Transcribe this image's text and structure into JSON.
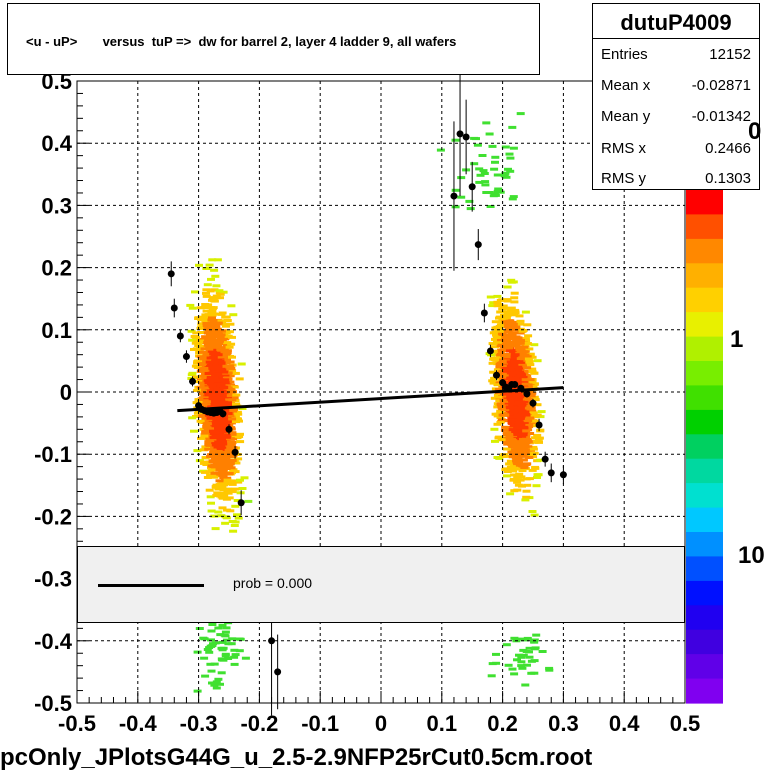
{
  "title": "<u - uP>       versus  tuP =>  dw for barrel 2, layer 4 ladder 9, all wafers",
  "bottom_title": "pcOnly_JPlotsG44G_u_2.5-2.9NFP25rCut0.5cm.root",
  "stats": {
    "name": "dutuP4009",
    "rows": [
      {
        "label": "Entries",
        "value": "12152"
      },
      {
        "label": "Mean x",
        "value": "-0.02871"
      },
      {
        "label": "Mean y",
        "value": "-0.01342"
      },
      {
        "label": "RMS x",
        "value": "0.2466"
      },
      {
        "label": "RMS y",
        "value": "0.1303"
      }
    ]
  },
  "legend": {
    "text": "prob = 0.000"
  },
  "colorbar": {
    "labels": [
      "0",
      "1",
      "10"
    ]
  },
  "chart_data": {
    "type": "scatter",
    "xlim": [
      -0.5,
      0.5
    ],
    "ylim": [
      -0.5,
      0.5
    ],
    "x_ticks": [
      "-0.5",
      "-0.4",
      "-0.3",
      "-0.2",
      "-0.1",
      "0",
      "0.1",
      "0.2",
      "0.3",
      "0.4",
      "0.5"
    ],
    "y_ticks": [
      "-0.5",
      "-0.4",
      "-0.3",
      "-0.2",
      "-0.1",
      "0",
      "0.1",
      "0.2",
      "0.3",
      "0.4",
      "0.5"
    ],
    "grid": true,
    "profile_points": [
      {
        "x": -0.345,
        "y": 0.19,
        "err": 0.02
      },
      {
        "x": -0.34,
        "y": 0.135,
        "err": 0.015
      },
      {
        "x": -0.33,
        "y": 0.09,
        "err": 0.01
      },
      {
        "x": -0.32,
        "y": 0.057,
        "err": 0.01
      },
      {
        "x": -0.31,
        "y": 0.017,
        "err": 0.008
      },
      {
        "x": -0.3,
        "y": -0.022,
        "err": 0.006
      },
      {
        "x": -0.295,
        "y": -0.028,
        "err": 0.005
      },
      {
        "x": -0.29,
        "y": -0.03,
        "err": 0.005
      },
      {
        "x": -0.285,
        "y": -0.032,
        "err": 0.005
      },
      {
        "x": -0.28,
        "y": -0.033,
        "err": 0.005
      },
      {
        "x": -0.275,
        "y": -0.034,
        "err": 0.005
      },
      {
        "x": -0.27,
        "y": -0.033,
        "err": 0.005
      },
      {
        "x": -0.265,
        "y": -0.031,
        "err": 0.005
      },
      {
        "x": -0.26,
        "y": -0.035,
        "err": 0.006
      },
      {
        "x": -0.25,
        "y": -0.06,
        "err": 0.008
      },
      {
        "x": -0.24,
        "y": -0.097,
        "err": 0.01
      },
      {
        "x": -0.23,
        "y": -0.178,
        "err": 0.02
      },
      {
        "x": -0.18,
        "y": -0.4,
        "err": 0.12
      },
      {
        "x": -0.17,
        "y": -0.45,
        "err": 0.06
      },
      {
        "x": 0.12,
        "y": 0.315,
        "err": 0.12
      },
      {
        "x": 0.13,
        "y": 0.415,
        "err": 0.1
      },
      {
        "x": 0.14,
        "y": 0.41,
        "err": 0.06
      },
      {
        "x": 0.15,
        "y": 0.33,
        "err": 0.04
      },
      {
        "x": 0.16,
        "y": 0.237,
        "err": 0.025
      },
      {
        "x": 0.17,
        "y": 0.127,
        "err": 0.015
      },
      {
        "x": 0.18,
        "y": 0.066,
        "err": 0.01
      },
      {
        "x": 0.19,
        "y": 0.027,
        "err": 0.008
      },
      {
        "x": 0.2,
        "y": 0.015,
        "err": 0.006
      },
      {
        "x": 0.205,
        "y": 0.008,
        "err": 0.005
      },
      {
        "x": 0.21,
        "y": 0.005,
        "err": 0.005
      },
      {
        "x": 0.215,
        "y": 0.012,
        "err": 0.005
      },
      {
        "x": 0.22,
        "y": 0.012,
        "err": 0.005
      },
      {
        "x": 0.23,
        "y": 0.006,
        "err": 0.005
      },
      {
        "x": 0.24,
        "y": -0.003,
        "err": 0.006
      },
      {
        "x": 0.25,
        "y": -0.018,
        "err": 0.007
      },
      {
        "x": 0.26,
        "y": -0.053,
        "err": 0.01
      },
      {
        "x": 0.27,
        "y": -0.108,
        "err": 0.012
      },
      {
        "x": 0.28,
        "y": -0.13,
        "err": 0.015
      },
      {
        "x": 0.3,
        "y": -0.133,
        "err": 0.015
      }
    ],
    "fit_line": {
      "x": [
        -0.335,
        0.3
      ],
      "y": [
        -0.03,
        0.007
      ]
    }
  }
}
